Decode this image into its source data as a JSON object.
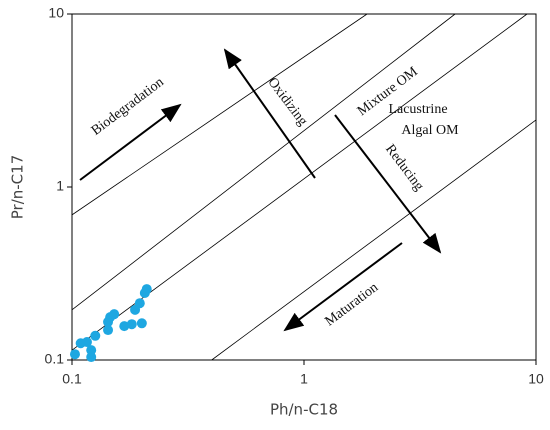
{
  "chart_data": {
    "type": "scatter",
    "x_label": "Ph/n-C18",
    "y_label": "Pr/n-C17",
    "log_x": true,
    "log_y": true,
    "xlim": [
      0.1,
      10
    ],
    "ylim": [
      0.1,
      10
    ],
    "xticks": [
      0.1,
      1,
      10
    ],
    "yticks": [
      0.1,
      1,
      10
    ],
    "color": "#1ea7e1",
    "x": [
      0.103,
      0.109,
      0.116,
      0.121,
      0.121,
      0.126,
      0.143,
      0.146,
      0.152,
      0.143,
      0.168,
      0.181,
      0.187,
      0.196,
      0.2,
      0.206,
      0.21
    ],
    "values": [
      0.108,
      0.125,
      0.127,
      0.114,
      0.104,
      0.138,
      0.166,
      0.177,
      0.184,
      0.149,
      0.157,
      0.161,
      0.195,
      0.213,
      0.163,
      0.244,
      0.257
    ],
    "lines": [
      {
        "x": [
          0.1,
          1.87
        ],
        "y": [
          0.69,
          10
        ]
      },
      {
        "x": [
          0.1,
          4.48
        ],
        "y": [
          0.195,
          10
        ]
      },
      {
        "x": [
          0.1,
          9.15
        ],
        "y": [
          0.114,
          10
        ]
      },
      {
        "x": [
          0.4,
          10
        ],
        "y": [
          0.1,
          2.44
        ]
      }
    ],
    "annotations": [
      "Biodegradation",
      "Oxidizing",
      "Mixture OM",
      "Lacustrine",
      "Algal OM",
      "Reducing",
      "Maturation"
    ]
  }
}
